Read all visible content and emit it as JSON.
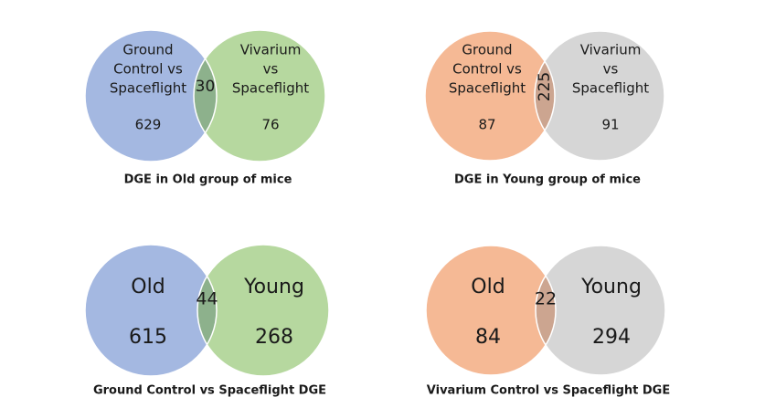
{
  "diagrams": [
    {
      "title": "DGE in Old group of mice",
      "left": {
        "label_lines": [
          "Ground",
          "Control vs",
          "Spaceflight"
        ],
        "count": 629,
        "color": "#a4b8e1"
      },
      "right": {
        "label_lines": [
          "Vivarium",
          "vs",
          "Spaceflight"
        ],
        "count": 76,
        "color": "#b6d89f"
      },
      "overlap": {
        "count": 30,
        "color": "#8db18c",
        "rotated": false
      }
    },
    {
      "title": "DGE in Young group of mice",
      "left": {
        "label_lines": [
          "Ground",
          "Control vs",
          "Spaceflight"
        ],
        "count": 87,
        "color": "#f5b995"
      },
      "right": {
        "label_lines": [
          "Vivarium",
          "vs",
          "Spaceflight"
        ],
        "count": 91,
        "color": "#d6d6d6"
      },
      "overlap": {
        "count": 225,
        "color": "#cca590",
        "rotated": true
      }
    },
    {
      "title": "Ground Control vs Spaceflight DGE",
      "left": {
        "label_lines": [
          "Old"
        ],
        "count": 615,
        "color": "#a4b8e1"
      },
      "right": {
        "label_lines": [
          "Young"
        ],
        "count": 268,
        "color": "#b6d89f"
      },
      "overlap": {
        "count": 44,
        "color": "#8db18c",
        "rotated": false
      }
    },
    {
      "title": "Vivarium Control vs Spaceflight DGE",
      "left": {
        "label_lines": [
          "Old"
        ],
        "count": 84,
        "color": "#f5b995"
      },
      "right": {
        "label_lines": [
          "Young"
        ],
        "count": 294,
        "color": "#d6d6d6"
      },
      "overlap": {
        "count": 22,
        "color": "#cca590",
        "rotated": false
      }
    }
  ]
}
